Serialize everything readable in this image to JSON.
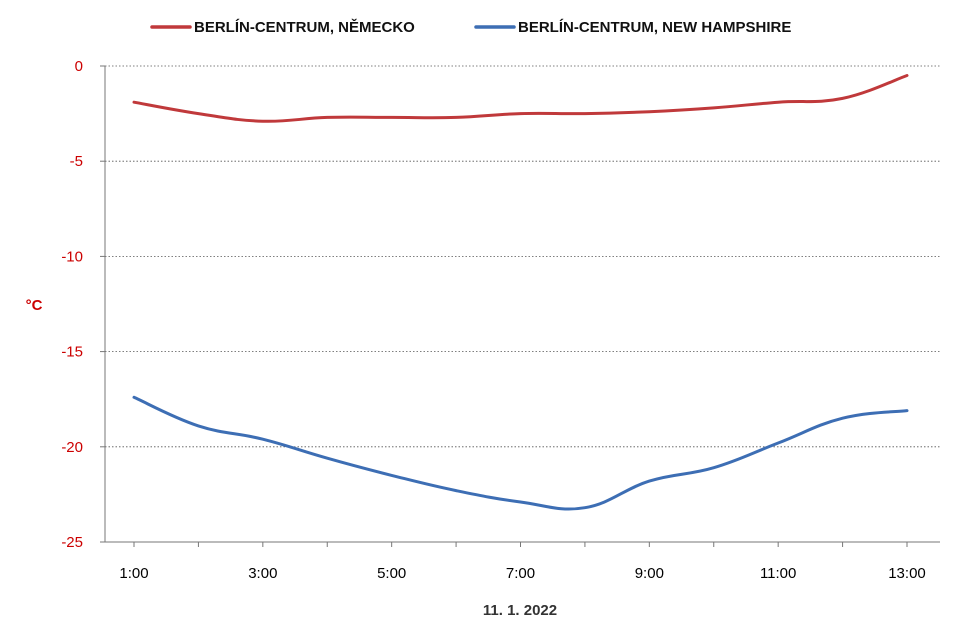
{
  "chart_data": {
    "type": "line",
    "x": [
      "1:00",
      "2:00",
      "3:00",
      "4:00",
      "5:00",
      "6:00",
      "7:00",
      "8:00",
      "9:00",
      "10:00",
      "11:00",
      "12:00",
      "13:00"
    ],
    "x_tick_labels": [
      "1:00",
      "3:00",
      "5:00",
      "7:00",
      "9:00",
      "11:00",
      "13:00"
    ],
    "series": [
      {
        "name": "BERLÍN-CENTRUM, NĚMECKO",
        "color": "#c0393b",
        "values": [
          -1.9,
          -2.5,
          -2.9,
          -2.7,
          -2.7,
          -2.7,
          -2.5,
          -2.5,
          -2.4,
          -2.2,
          -1.9,
          -1.7,
          -0.5
        ]
      },
      {
        "name": "BERLÍN-CENTRUM, NEW HAMPSHIRE",
        "color": "#3d6eb4",
        "values": [
          -17.4,
          -18.9,
          -19.6,
          -20.6,
          -21.5,
          -22.3,
          -22.9,
          -23.2,
          -21.8,
          -21.1,
          -19.8,
          -18.5,
          -18.1
        ]
      }
    ],
    "y_ticks": [
      0,
      -5,
      -10,
      -15,
      -20,
      -25
    ],
    "ylim": [
      -25,
      0
    ],
    "ylabel": "°C",
    "xlabel": "11. 1. 2022",
    "grid": true,
    "legend_position": "top"
  }
}
